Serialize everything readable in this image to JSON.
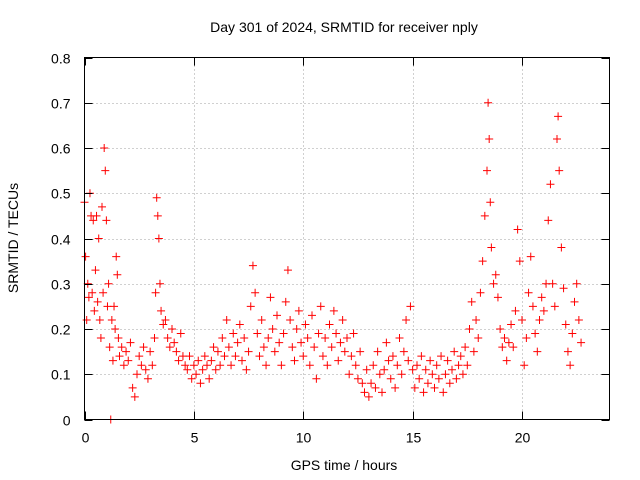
{
  "chart_data": {
    "type": "scatter",
    "title": "Day 301 of 2024, SRMTID for receiver nply",
    "xlabel": "GPS time / hours",
    "ylabel": "SRMTID / TECUs",
    "xlim": [
      0,
      24
    ],
    "ylim": [
      0,
      0.8
    ],
    "xticks": [
      0,
      5,
      10,
      15,
      20
    ],
    "xtick_labels": [
      "0",
      "5",
      "10",
      "15",
      "20"
    ],
    "yticks": [
      0,
      0.1,
      0.2,
      0.3,
      0.4,
      0.5,
      0.6,
      0.7,
      0.8
    ],
    "ytick_labels": [
      "0",
      "0.1",
      "0.2",
      "0.3",
      "0.4",
      "0.5",
      "0.6",
      "0.7",
      "0.8"
    ],
    "grid": true,
    "marker": "+",
    "color": "#ff0000",
    "series": [
      {
        "name": "SRMTID",
        "points": [
          [
            0.0,
            0.48
          ],
          [
            0.05,
            0.36
          ],
          [
            0.1,
            0.22
          ],
          [
            0.15,
            0.3
          ],
          [
            0.2,
            0.27
          ],
          [
            0.25,
            0.5
          ],
          [
            0.3,
            0.45
          ],
          [
            0.35,
            0.28
          ],
          [
            0.4,
            0.44
          ],
          [
            0.45,
            0.24
          ],
          [
            0.5,
            0.33
          ],
          [
            0.55,
            0.45
          ],
          [
            0.6,
            0.26
          ],
          [
            0.65,
            0.4
          ],
          [
            0.7,
            0.22
          ],
          [
            0.75,
            0.18
          ],
          [
            0.8,
            0.47
          ],
          [
            0.85,
            0.28
          ],
          [
            0.9,
            0.6
          ],
          [
            0.95,
            0.55
          ],
          [
            1.0,
            0.44
          ],
          [
            1.05,
            0.25
          ],
          [
            1.1,
            0.3
          ],
          [
            1.15,
            0.16
          ],
          [
            1.2,
            0.0
          ],
          [
            1.25,
            0.22
          ],
          [
            1.3,
            0.13
          ],
          [
            1.35,
            0.25
          ],
          [
            1.4,
            0.2
          ],
          [
            1.45,
            0.36
          ],
          [
            1.5,
            0.32
          ],
          [
            1.55,
            0.18
          ],
          [
            1.6,
            0.14
          ],
          [
            1.7,
            0.16
          ],
          [
            1.8,
            0.12
          ],
          [
            1.9,
            0.15
          ],
          [
            2.0,
            0.13
          ],
          [
            2.1,
            0.17
          ],
          [
            2.2,
            0.07
          ],
          [
            2.3,
            0.05
          ],
          [
            2.4,
            0.1
          ],
          [
            2.5,
            0.14
          ],
          [
            2.6,
            0.12
          ],
          [
            2.7,
            0.16
          ],
          [
            2.8,
            0.11
          ],
          [
            2.9,
            0.09
          ],
          [
            3.0,
            0.15
          ],
          [
            3.1,
            0.12
          ],
          [
            3.2,
            0.18
          ],
          [
            3.25,
            0.28
          ],
          [
            3.3,
            0.49
          ],
          [
            3.35,
            0.45
          ],
          [
            3.4,
            0.4
          ],
          [
            3.45,
            0.3
          ],
          [
            3.5,
            0.24
          ],
          [
            3.6,
            0.21
          ],
          [
            3.7,
            0.22
          ],
          [
            3.8,
            0.18
          ],
          [
            3.9,
            0.16
          ],
          [
            4.0,
            0.2
          ],
          [
            4.1,
            0.17
          ],
          [
            4.2,
            0.15
          ],
          [
            4.3,
            0.13
          ],
          [
            4.4,
            0.19
          ],
          [
            4.5,
            0.14
          ],
          [
            4.6,
            0.12
          ],
          [
            4.7,
            0.11
          ],
          [
            4.8,
            0.14
          ],
          [
            4.9,
            0.09
          ],
          [
            5.0,
            0.12
          ],
          [
            5.1,
            0.1
          ],
          [
            5.2,
            0.13
          ],
          [
            5.3,
            0.08
          ],
          [
            5.4,
            0.11
          ],
          [
            5.5,
            0.14
          ],
          [
            5.6,
            0.12
          ],
          [
            5.7,
            0.09
          ],
          [
            5.8,
            0.13
          ],
          [
            5.9,
            0.16
          ],
          [
            6.0,
            0.11
          ],
          [
            6.1,
            0.15
          ],
          [
            6.2,
            0.12
          ],
          [
            6.3,
            0.18
          ],
          [
            6.4,
            0.14
          ],
          [
            6.5,
            0.22
          ],
          [
            6.6,
            0.16
          ],
          [
            6.7,
            0.12
          ],
          [
            6.8,
            0.19
          ],
          [
            6.9,
            0.14
          ],
          [
            7.0,
            0.17
          ],
          [
            7.1,
            0.21
          ],
          [
            7.2,
            0.13
          ],
          [
            7.3,
            0.18
          ],
          [
            7.4,
            0.11
          ],
          [
            7.5,
            0.15
          ],
          [
            7.6,
            0.25
          ],
          [
            7.7,
            0.34
          ],
          [
            7.8,
            0.28
          ],
          [
            7.9,
            0.19
          ],
          [
            8.0,
            0.14
          ],
          [
            8.1,
            0.22
          ],
          [
            8.2,
            0.16
          ],
          [
            8.3,
            0.12
          ],
          [
            8.4,
            0.18
          ],
          [
            8.5,
            0.27
          ],
          [
            8.6,
            0.2
          ],
          [
            8.7,
            0.15
          ],
          [
            8.8,
            0.23
          ],
          [
            8.9,
            0.17
          ],
          [
            9.0,
            0.12
          ],
          [
            9.1,
            0.19
          ],
          [
            9.2,
            0.26
          ],
          [
            9.3,
            0.33
          ],
          [
            9.4,
            0.22
          ],
          [
            9.5,
            0.16
          ],
          [
            9.6,
            0.13
          ],
          [
            9.7,
            0.2
          ],
          [
            9.8,
            0.24
          ],
          [
            9.9,
            0.17
          ],
          [
            10.0,
            0.14
          ],
          [
            10.1,
            0.21
          ],
          [
            10.2,
            0.18
          ],
          [
            10.3,
            0.12
          ],
          [
            10.4,
            0.23
          ],
          [
            10.5,
            0.16
          ],
          [
            10.6,
            0.09
          ],
          [
            10.7,
            0.19
          ],
          [
            10.8,
            0.25
          ],
          [
            10.9,
            0.14
          ],
          [
            11.0,
            0.18
          ],
          [
            11.1,
            0.12
          ],
          [
            11.2,
            0.21
          ],
          [
            11.3,
            0.16
          ],
          [
            11.4,
            0.24
          ],
          [
            11.5,
            0.19
          ],
          [
            11.6,
            0.13
          ],
          [
            11.7,
            0.17
          ],
          [
            11.8,
            0.22
          ],
          [
            11.9,
            0.15
          ],
          [
            12.0,
            0.18
          ],
          [
            12.1,
            0.1
          ],
          [
            12.2,
            0.14
          ],
          [
            12.3,
            0.19
          ],
          [
            12.4,
            0.12
          ],
          [
            12.5,
            0.09
          ],
          [
            12.6,
            0.15
          ],
          [
            12.7,
            0.08
          ],
          [
            12.8,
            0.06
          ],
          [
            12.9,
            0.11
          ],
          [
            13.0,
            0.05
          ],
          [
            13.1,
            0.08
          ],
          [
            13.2,
            0.12
          ],
          [
            13.3,
            0.07
          ],
          [
            13.4,
            0.15
          ],
          [
            13.5,
            0.1
          ],
          [
            13.6,
            0.06
          ],
          [
            13.7,
            0.11
          ],
          [
            13.8,
            0.17
          ],
          [
            13.9,
            0.13
          ],
          [
            14.0,
            0.09
          ],
          [
            14.1,
            0.14
          ],
          [
            14.2,
            0.07
          ],
          [
            14.3,
            0.12
          ],
          [
            14.4,
            0.18
          ],
          [
            14.5,
            0.1
          ],
          [
            14.6,
            0.15
          ],
          [
            14.7,
            0.22
          ],
          [
            14.8,
            0.13
          ],
          [
            14.9,
            0.25
          ],
          [
            15.0,
            0.11
          ],
          [
            15.1,
            0.07
          ],
          [
            15.2,
            0.12
          ],
          [
            15.3,
            0.09
          ],
          [
            15.4,
            0.14
          ],
          [
            15.5,
            0.06
          ],
          [
            15.6,
            0.11
          ],
          [
            15.7,
            0.08
          ],
          [
            15.8,
            0.13
          ],
          [
            15.9,
            0.1
          ],
          [
            16.0,
            0.07
          ],
          [
            16.1,
            0.12
          ],
          [
            16.2,
            0.09
          ],
          [
            16.3,
            0.14
          ],
          [
            16.4,
            0.06
          ],
          [
            16.5,
            0.1
          ],
          [
            16.6,
            0.13
          ],
          [
            16.7,
            0.08
          ],
          [
            16.8,
            0.11
          ],
          [
            16.9,
            0.15
          ],
          [
            17.0,
            0.09
          ],
          [
            17.1,
            0.12
          ],
          [
            17.2,
            0.14
          ],
          [
            17.3,
            0.1
          ],
          [
            17.4,
            0.16
          ],
          [
            17.5,
            0.12
          ],
          [
            17.6,
            0.2
          ],
          [
            17.7,
            0.26
          ],
          [
            17.8,
            0.15
          ],
          [
            17.9,
            0.22
          ],
          [
            18.0,
            0.18
          ],
          [
            18.1,
            0.28
          ],
          [
            18.2,
            0.35
          ],
          [
            18.3,
            0.45
          ],
          [
            18.4,
            0.55
          ],
          [
            18.45,
            0.7
          ],
          [
            18.5,
            0.62
          ],
          [
            18.55,
            0.48
          ],
          [
            18.6,
            0.38
          ],
          [
            18.7,
            0.3
          ],
          [
            18.8,
            0.32
          ],
          [
            18.9,
            0.27
          ],
          [
            19.0,
            0.2
          ],
          [
            19.1,
            0.16
          ],
          [
            19.2,
            0.18
          ],
          [
            19.3,
            0.13
          ],
          [
            19.4,
            0.17
          ],
          [
            19.5,
            0.21
          ],
          [
            19.6,
            0.16
          ],
          [
            19.7,
            0.24
          ],
          [
            19.8,
            0.42
          ],
          [
            19.9,
            0.35
          ],
          [
            20.0,
            0.22
          ],
          [
            20.1,
            0.12
          ],
          [
            20.2,
            0.18
          ],
          [
            20.3,
            0.28
          ],
          [
            20.4,
            0.36
          ],
          [
            20.5,
            0.25
          ],
          [
            20.6,
            0.19
          ],
          [
            20.7,
            0.15
          ],
          [
            20.8,
            0.22
          ],
          [
            20.9,
            0.27
          ],
          [
            21.0,
            0.24
          ],
          [
            21.1,
            0.3
          ],
          [
            21.2,
            0.44
          ],
          [
            21.3,
            0.52
          ],
          [
            21.4,
            0.3
          ],
          [
            21.5,
            0.25
          ],
          [
            21.6,
            0.62
          ],
          [
            21.65,
            0.67
          ],
          [
            21.7,
            0.55
          ],
          [
            21.8,
            0.38
          ],
          [
            21.9,
            0.29
          ],
          [
            22.0,
            0.21
          ],
          [
            22.1,
            0.15
          ],
          [
            22.2,
            0.12
          ],
          [
            22.3,
            0.19
          ],
          [
            22.4,
            0.26
          ],
          [
            22.5,
            0.3
          ],
          [
            22.6,
            0.22
          ],
          [
            22.7,
            0.17
          ]
        ]
      }
    ]
  }
}
